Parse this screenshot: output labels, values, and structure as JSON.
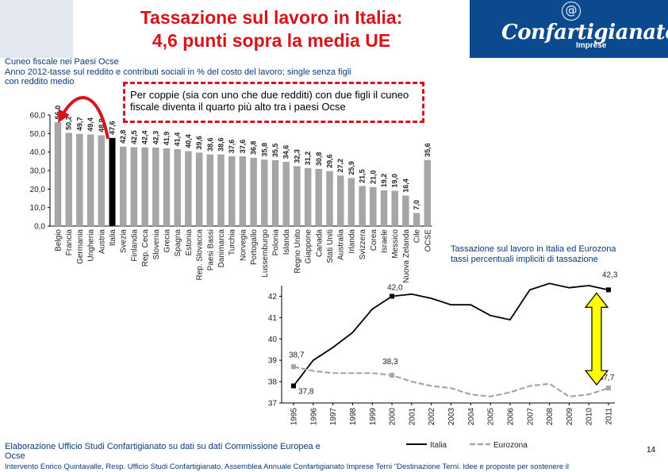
{
  "header": {
    "title_line1": "Tassazione sul lavoro in Italia:",
    "title_line2": "4,6 punti sopra la media UE",
    "logo_text": "Confartigianato",
    "logo_sub": "Imprese",
    "logo_symbol": "@"
  },
  "subtitle": {
    "line1": "Cuneo fiscale nei Paesi Ocse",
    "line2": "Anno 2012-tasse sul reddito e contributi sociali in % del costo del lavoro; single senza figli",
    "line3": "con reddito medio"
  },
  "callout": "Per coppie (sia con uno che due redditi) con due figli il cuneo fiscale diventa il quarto più alto tra i paesi Ocse",
  "chart_data": [
    {
      "type": "bar",
      "ylim": [
        0,
        60
      ],
      "yticks": [
        "0,0",
        "10,0",
        "20,0",
        "30,0",
        "40,0",
        "50,0",
        "60,0"
      ],
      "categories": [
        "Belgio",
        "Francia",
        "Germania",
        "Ungheria",
        "Austria",
        "Italia",
        "Svezia",
        "Finlandia",
        "Rep. Ceca",
        "Slovenia",
        "Grecia",
        "Spagna",
        "Estonia",
        "Rep. Slovacca",
        "Paesi Bassi",
        "Danimarca",
        "Turchia",
        "Norvegia",
        "Portogallo",
        "Lussemburgo",
        "Polonia",
        "Islanda",
        "Regno Unito",
        "Giappone",
        "Canada",
        "Stati Uniti",
        "Australia",
        "Irlanda",
        "Svizzera",
        "Corea",
        "Israele",
        "Messico",
        "Nuova Zelanda",
        "Cile",
        "OCSE"
      ],
      "values": [
        56.0,
        50.2,
        49.7,
        49.4,
        48.9,
        47.6,
        42.8,
        42.5,
        42.4,
        42.3,
        41.9,
        41.4,
        40.4,
        39.6,
        38.6,
        38.6,
        37.6,
        37.6,
        36.8,
        35.8,
        35.5,
        34.6,
        32.3,
        31.2,
        30.8,
        29.6,
        27.2,
        25.9,
        21.5,
        21.0,
        19.2,
        19.0,
        16.4,
        7.0,
        35.6
      ],
      "labels": [
        "56,0",
        "50,2",
        "49,7",
        "49,4",
        "48,9",
        "47,6",
        "42,8",
        "42,5",
        "42,4",
        "42,3",
        "41,9",
        "41,4",
        "40,4",
        "39,6",
        "38,6",
        "38,6",
        "37,6",
        "37,6",
        "36,8",
        "35,8",
        "35,5",
        "34,6",
        "32,3",
        "31,2",
        "30,8",
        "29,6",
        "27,2",
        "25,9",
        "21,5",
        "21,0",
        "19,2",
        "19,0",
        "16,4",
        "7,0",
        "35,6"
      ],
      "highlight": "Italia",
      "colors": {
        "bar": "#a6a6a6",
        "highlight": "#000000",
        "ocse": "#a6a6a6"
      }
    },
    {
      "type": "line",
      "title_line1": "Tassazione sul lavoro in Italia ed Eurozona",
      "title_line2": "tassi percentuali impliciti di tassazione",
      "ylim": [
        37,
        42.5
      ],
      "yticks": [
        37,
        38,
        39,
        40,
        41,
        42
      ],
      "x": [
        "1995",
        "1996",
        "1997",
        "1998",
        "1999",
        "2000",
        "2001",
        "2002",
        "2003",
        "2004",
        "2005",
        "2006",
        "2007",
        "2008",
        "2009",
        "2010",
        "2011"
      ],
      "series": [
        {
          "name": "Italia",
          "color": "#000000",
          "values": [
            37.8,
            39.0,
            39.6,
            40.3,
            41.4,
            42.0,
            42.1,
            41.9,
            41.6,
            41.6,
            41.1,
            40.9,
            42.3,
            42.6,
            42.4,
            42.5,
            42.3
          ]
        },
        {
          "name": "Eurozona",
          "color": "#a6a6a6",
          "values": [
            38.7,
            38.5,
            38.4,
            38.4,
            38.4,
            38.3,
            38.0,
            37.8,
            37.7,
            37.4,
            37.3,
            37.5,
            37.8,
            37.9,
            37.3,
            37.4,
            37.7
          ]
        }
      ],
      "annotations": {
        "italia_1995": "37,8",
        "italia_2000": "42,0",
        "italia_2011": "42,3",
        "eurozona_1995": "38,7",
        "eurozona_2000": "38,3",
        "eurozona_2011": "37,7"
      }
    }
  ],
  "source": "Elaborazione Ufficio Studi Confartigianato su dati su dati Commissione Europea e Ocse",
  "page_number": "14",
  "footer": "Intervento Enrico Quintavalle, Resp. Ufficio Studi Confartigianato. Assemblea Annuale Confartigianato Imprese Terni \"Destinazione Terni. Idee e proposte per sostenere il"
}
